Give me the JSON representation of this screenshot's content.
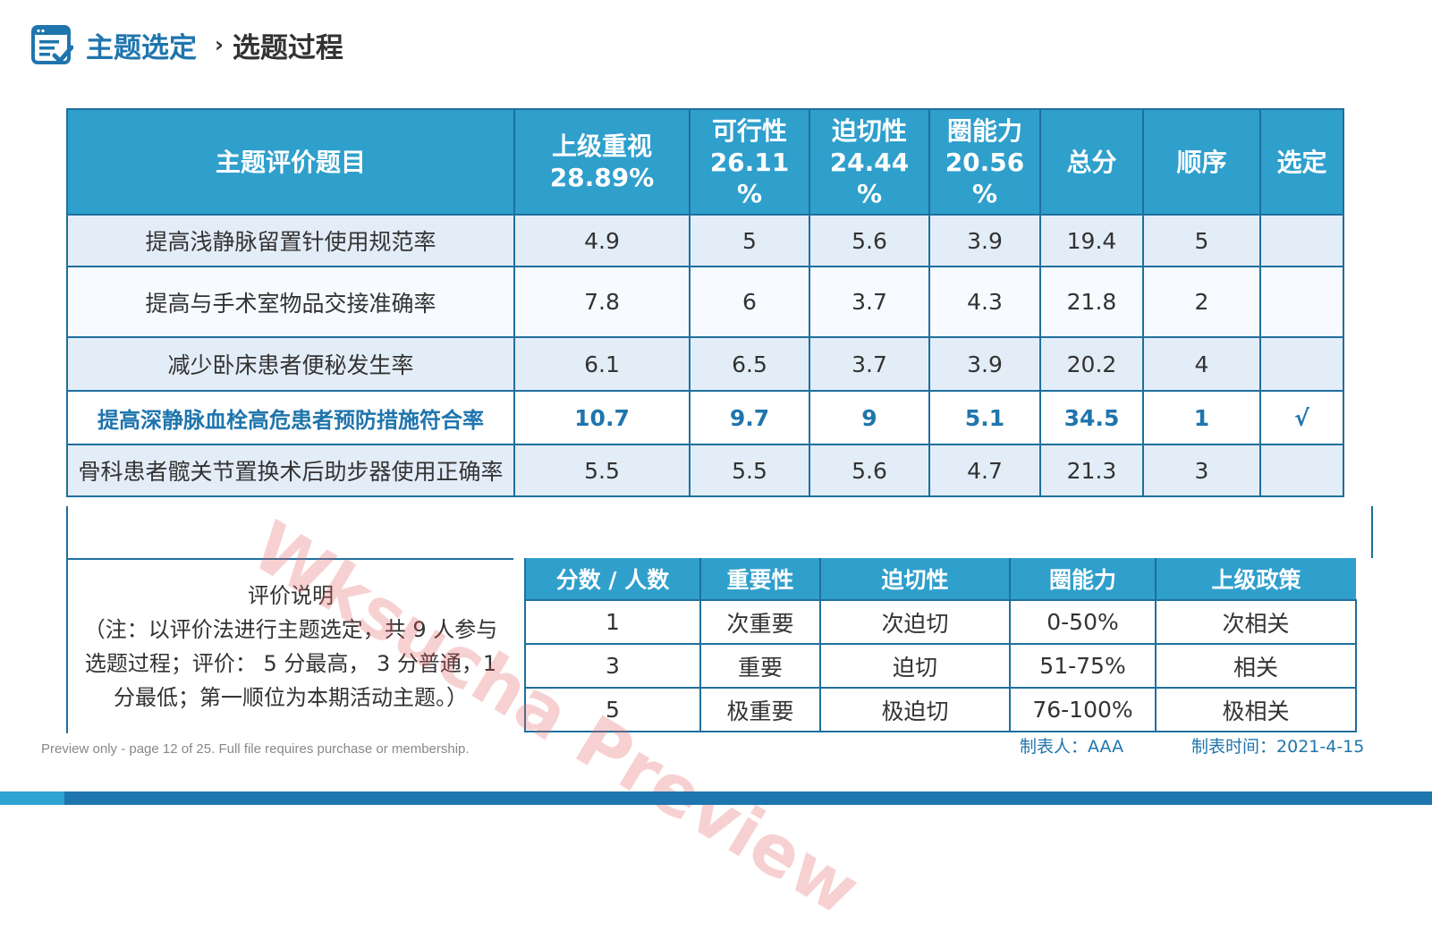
{
  "header": {
    "icon": "checklist-icon",
    "title": "主题选定",
    "separator": "›",
    "subtitle": "选题过程"
  },
  "table": {
    "headers": {
      "topic": "主题评价题目",
      "c1_line1": "上级重视",
      "c1_line2": "28.89%",
      "c2_line1": "可行性",
      "c2_line2": "26.11",
      "c2_line3": "%",
      "c3_line1": "迫切性",
      "c3_line2": "24.44",
      "c3_line3": "%",
      "c4_line1": "圈能力",
      "c4_line2": "20.56",
      "c4_line3": "%",
      "total": "总分",
      "order": "顺序",
      "selected": "选定"
    },
    "rows": [
      {
        "topic": "提高浅静脉留置针使用规范率",
        "c1": "4.9",
        "c2": "5",
        "c3": "5.6",
        "c4": "3.9",
        "total": "19.4",
        "order": "5",
        "selected": ""
      },
      {
        "topic": "提高与手术室物品交接准确率",
        "c1": "7.8",
        "c2": "6",
        "c3": "3.7",
        "c4": "4.3",
        "total": "21.8",
        "order": "2",
        "selected": ""
      },
      {
        "topic": "减少卧床患者便秘发生率",
        "c1": "6.1",
        "c2": "6.5",
        "c3": "3.7",
        "c4": "3.9",
        "total": "20.2",
        "order": "4",
        "selected": ""
      },
      {
        "topic": "提高深静脉血栓高危患者预防措施符合率",
        "c1": "10.7",
        "c2": "9.7",
        "c3": "9",
        "c4": "5.1",
        "total": "34.5",
        "order": "1",
        "selected": "√"
      },
      {
        "topic": "骨科患者髋关节置换术后助步器使用正确率",
        "c1": "5.5",
        "c2": "5.5",
        "c3": "5.6",
        "c4": "4.7",
        "total": "21.3",
        "order": "3",
        "selected": ""
      }
    ]
  },
  "legend": {
    "title": "评价说明",
    "note": "（注：以评价法进行主题选定，共 9 人参与选题过程；评价： 5 分最高， 3 分普通，1 分最低；第一顺位为本期活动主题。）",
    "headers": [
      "分数 / 人数",
      "重要性",
      "迫切性",
      "圈能力",
      "上级政策"
    ],
    "rows": [
      [
        "1",
        "次重要",
        "次迫切",
        "0-50%",
        "次相关"
      ],
      [
        "3",
        "重要",
        "迫切",
        "51-75%",
        "相关"
      ],
      [
        "5",
        "极重要",
        "极迫切",
        "76-100%",
        "极相关"
      ]
    ]
  },
  "watermark": "Wksucha Preview",
  "footer": {
    "preview_note": "Preview only - page 12 of 25. Full file requires purchase or membership.",
    "maker_label": "制表人：",
    "maker": "AAA",
    "date_label": "制表时间：",
    "date": "2021-4-15"
  },
  "colors": {
    "brand": "#1f75ad",
    "header_bg": "#2f9fcc",
    "row_tint": "#e3edf8"
  }
}
